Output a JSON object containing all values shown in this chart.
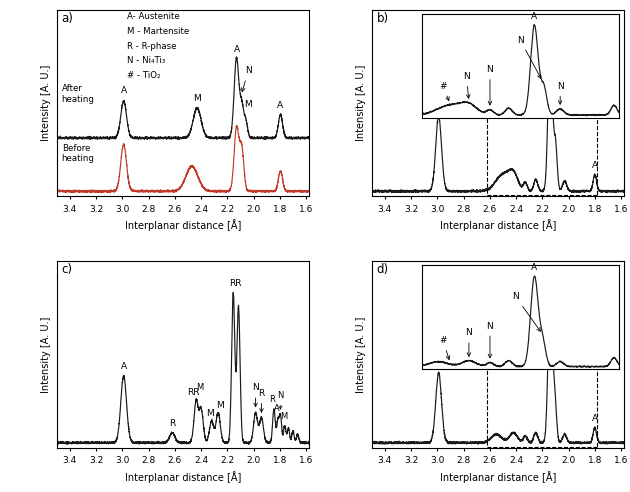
{
  "xlabel": "Interplanar distance [Å]",
  "ylabel": "Intensity [A. U.]",
  "xlim": [
    3.5,
    1.58
  ],
  "figure_size": [
    6.3,
    4.92
  ],
  "dpi": 100,
  "legend_text_a": "A- Austenite",
  "legend_text_m": "M - Martensite",
  "legend_text_r": "R - R-phase",
  "legend_text_n": "N - Ni₄Ti₃",
  "legend_text_hash": "# - TiO₂",
  "color_black": "#1a1a1a",
  "color_red": "#c0392b",
  "panel_labels": [
    "a)",
    "b)",
    "c)",
    "d)"
  ],
  "xticks": [
    3.4,
    3.2,
    3.0,
    2.8,
    2.6,
    2.4,
    2.2,
    2.0,
    1.8,
    1.6
  ]
}
